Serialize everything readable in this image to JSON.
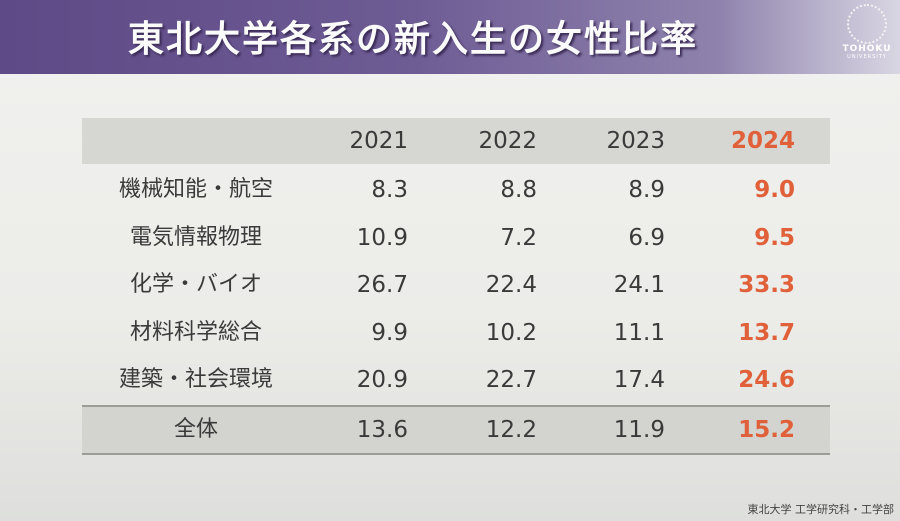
{
  "header": {
    "title": "東北大学各系の新入生の女性比率",
    "logo": {
      "text": "TOHOKU",
      "subtext": "UNIVERSITY"
    }
  },
  "table": {
    "columns": [
      "2021",
      "2022",
      "2023",
      "2024"
    ],
    "rows": [
      {
        "label": "機械知能・航空",
        "values": [
          "8.3",
          "8.8",
          "8.9",
          "9.0"
        ]
      },
      {
        "label": "電気情報物理",
        "values": [
          "10.9",
          "7.2",
          "6.9",
          "9.5"
        ]
      },
      {
        "label": "化学・バイオ",
        "values": [
          "26.7",
          "22.4",
          "24.1",
          "33.3"
        ]
      },
      {
        "label": "材料科学総合",
        "values": [
          "9.9",
          "10.2",
          "11.1",
          "13.7"
        ]
      },
      {
        "label": "建築・社会環境",
        "values": [
          "20.9",
          "22.7",
          "17.4",
          "24.6"
        ]
      }
    ],
    "total": {
      "label": "全体",
      "values": [
        "13.6",
        "12.2",
        "11.9",
        "15.2"
      ]
    }
  },
  "footer": "東北大学 工学研究科・工学部"
}
